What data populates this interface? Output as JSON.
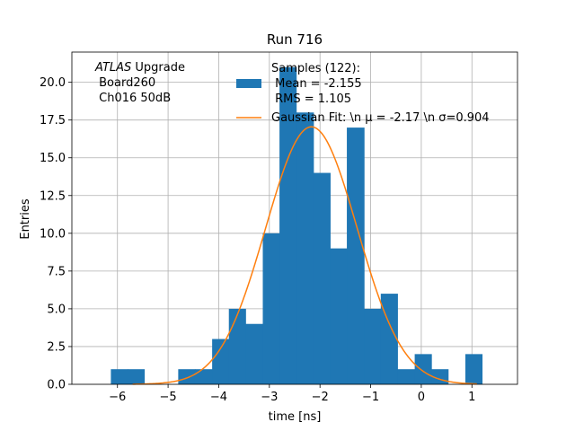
{
  "chart_data": {
    "type": "bar",
    "title": "Run 716",
    "xlabel": "time [ns]",
    "ylabel": "Entries",
    "xlim": [
      -6.9,
      1.9
    ],
    "ylim": [
      0,
      22
    ],
    "grid": true,
    "legend_position": "top-center",
    "x_ticks": [
      -6,
      -5,
      -4,
      -3,
      -2,
      -1,
      0,
      1
    ],
    "x_tick_labels": [
      "−6",
      "−5",
      "−4",
      "−3",
      "−2",
      "−1",
      "0",
      "1"
    ],
    "y_ticks": [
      0,
      2.5,
      5,
      7.5,
      10,
      12.5,
      15,
      17.5,
      20
    ],
    "y_tick_labels": [
      "0.0",
      "2.5",
      "5.0",
      "7.5",
      "10.0",
      "12.5",
      "15.0",
      "17.5",
      "20.0"
    ],
    "bin_edges": [
      -6.13,
      -5.8,
      -5.47,
      -5.13,
      -4.8,
      -4.47,
      -4.13,
      -3.8,
      -3.47,
      -3.13,
      -2.8,
      -2.47,
      -2.13,
      -1.8,
      -1.47,
      -1.13,
      -0.8,
      -0.47,
      -0.13,
      0.2,
      0.53,
      0.87,
      1.2
    ],
    "counts": [
      1,
      1,
      0,
      0,
      1,
      1,
      3,
      5,
      4,
      10,
      21,
      18,
      14,
      9,
      17,
      5,
      6,
      1,
      2,
      1,
      0,
      2
    ],
    "series": [
      {
        "name": "Samples (122):\n Mean = -2.155\n RMS = 1.105",
        "color": "#1f77b4",
        "kind": "histogram"
      },
      {
        "name": "Gaussian Fit: \\n $\\mu$ = -2.17 \\n $\\sigma$=0.904",
        "color": "#ff7f0e",
        "kind": "line"
      }
    ],
    "fit": {
      "mu": -2.17,
      "sigma": 0.904,
      "amplitude": 17.05,
      "x_range": [
        -5.7,
        1.1
      ]
    },
    "legend": {
      "samples_lines": [
        "Samples (122):",
        " Mean = -2.155",
        " RMS = 1.105"
      ],
      "fit_label": "Gaussian Fit: \\n μ = -2.17 \\n σ=0.904"
    },
    "annotation": {
      "prefix_italic": "ATLAS",
      "line1_rest": " Upgrade",
      "line2": " Board260",
      "line3": " Ch016 50dB"
    }
  }
}
